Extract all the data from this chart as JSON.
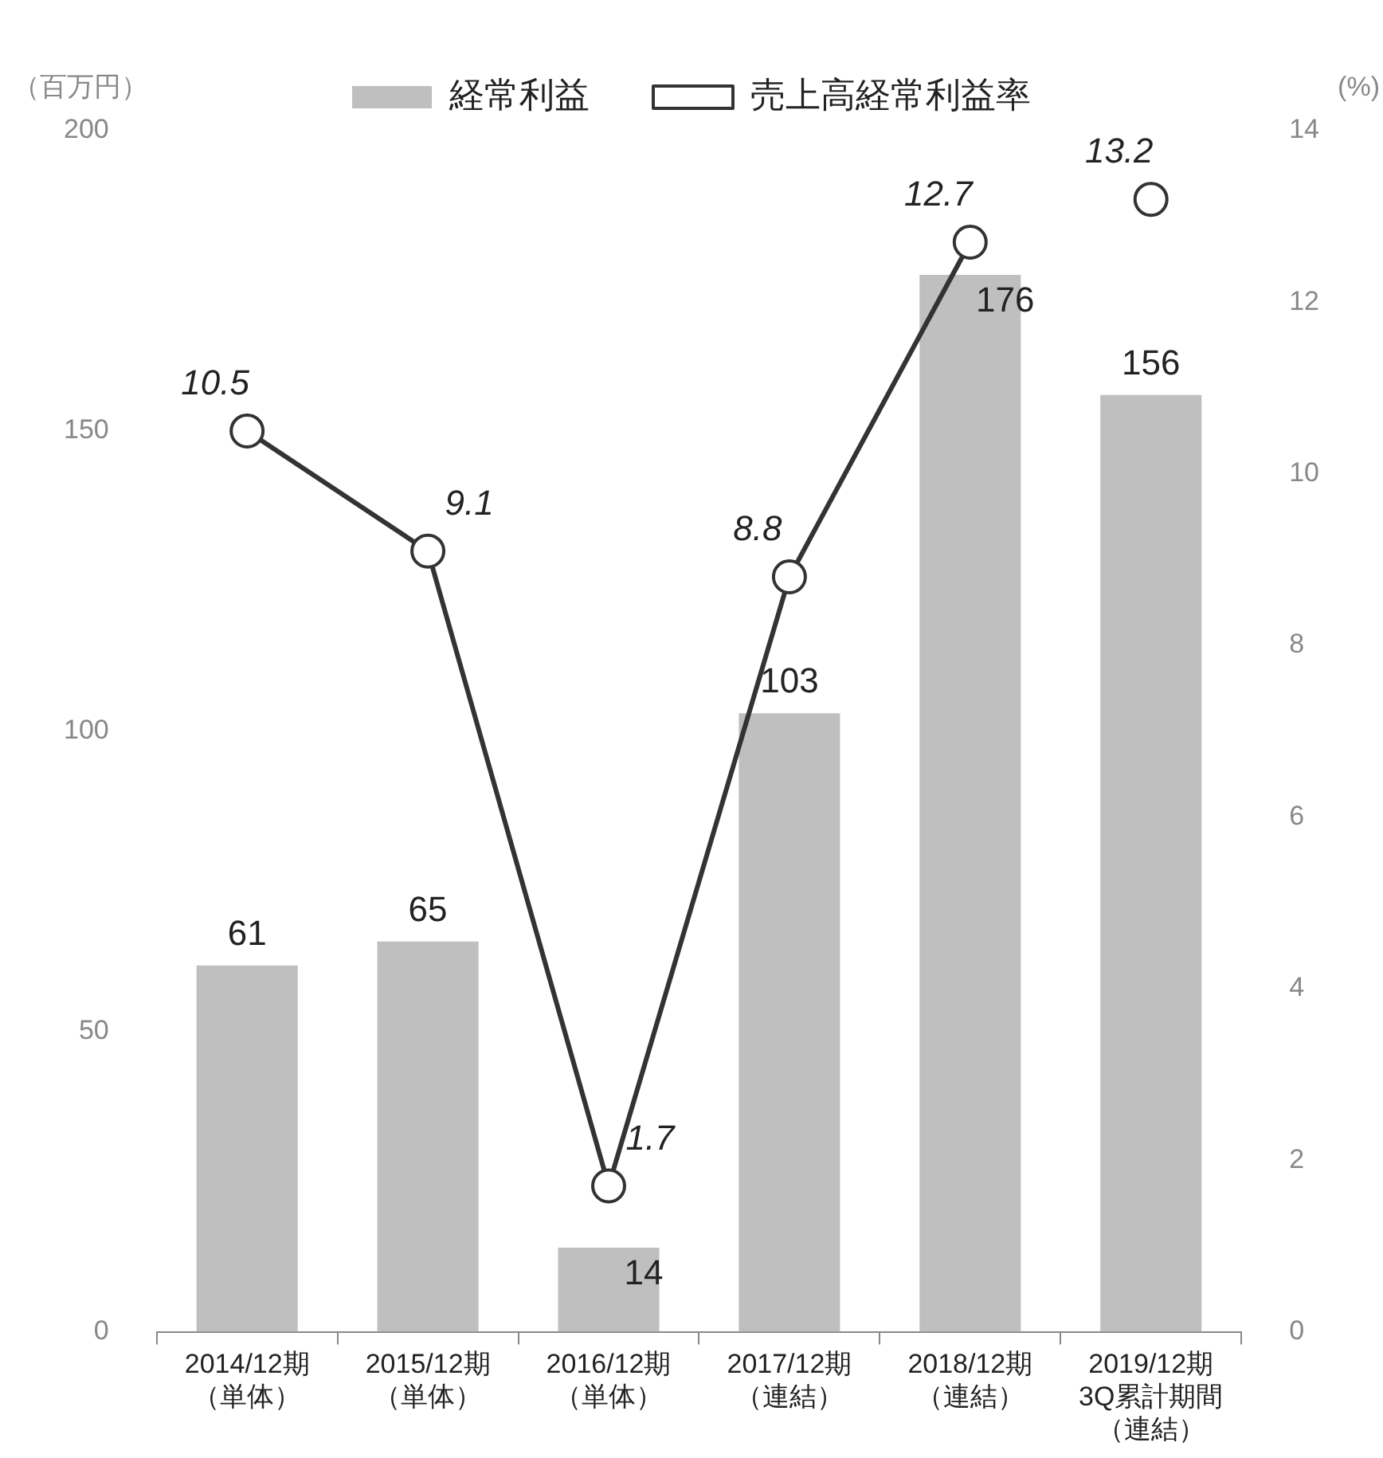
{
  "chart_data": {
    "type": "bar",
    "categories": [
      "2014/12期（単体）",
      "2015/12期（単体）",
      "2016/12期（単体）",
      "2017/12期（連結）",
      "2018/12期（連結）",
      "2019/12期3Q累計期間（連結）"
    ],
    "series": [
      {
        "name": "経常利益",
        "color": "#bfbfbf",
        "values": [
          61,
          65,
          14,
          103,
          176,
          156
        ]
      },
      {
        "name": "売上高経常利益率",
        "type": "line",
        "axis": "y2",
        "color": "#333333",
        "marker": "circle",
        "values": [
          10.5,
          9.1,
          1.7,
          8.8,
          12.7,
          null
        ]
      },
      {
        "type": "scatter",
        "axis": "y2",
        "color": "#333333",
        "marker": "circle",
        "values": [
          null,
          null,
          null,
          null,
          null,
          13.2
        ]
      }
    ],
    "ylabel": "（百万円）",
    "y2label": "(%)",
    "ylim": [
      0,
      200
    ],
    "yticks": [
      0,
      50,
      100,
      150,
      200
    ],
    "y2lim": [
      0,
      14
    ],
    "y2ticks": [
      0,
      2,
      4,
      6,
      8,
      10,
      12,
      14
    ],
    "grid": false,
    "legend": "top",
    "data_labels": true
  }
}
